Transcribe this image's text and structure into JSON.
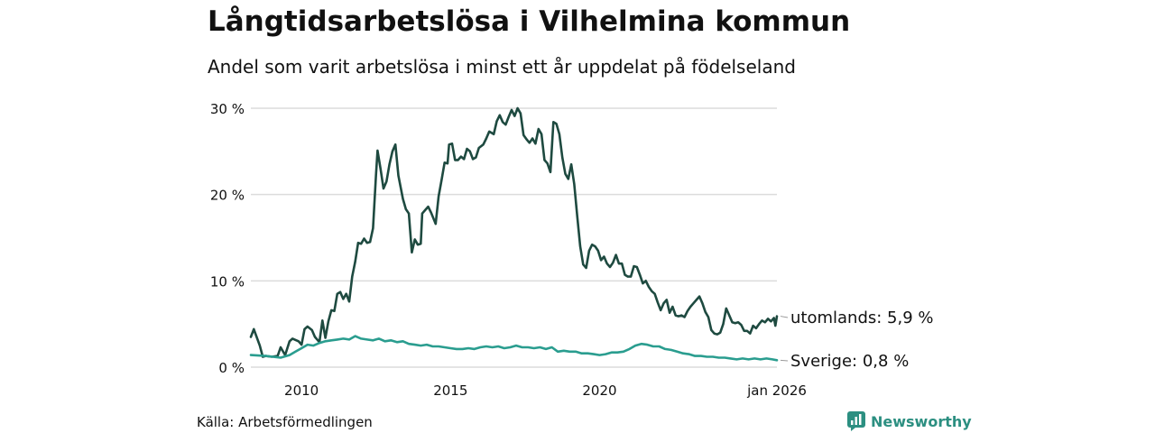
{
  "title": "Långtidsarbetslösa i Vilhelmina kommun",
  "subtitle": "Andel som varit arbetslösa i minst ett år uppdelat på födelseland",
  "source": "Källa: Arbetsförmedlingen",
  "brand": {
    "name": "Newsworthy",
    "icon": "newsworthy-logo-icon",
    "color": "#2c8f81"
  },
  "chart_data": {
    "type": "line",
    "title": "Långtidsarbetslösa i Vilhelmina kommun",
    "xlabel": "",
    "ylabel": "",
    "xlim": [
      2008.3,
      2026.0
    ],
    "ylim": [
      0,
      30
    ],
    "grid": true,
    "y_ticks": [
      {
        "value": 0,
        "label": "0 %"
      },
      {
        "value": 10,
        "label": "10 %"
      },
      {
        "value": 20,
        "label": "20 %"
      },
      {
        "value": 30,
        "label": "30 %"
      }
    ],
    "x_ticks": [
      {
        "value": 2010,
        "label": "2010"
      },
      {
        "value": 2015,
        "label": "2015"
      },
      {
        "value": 2020,
        "label": "2020"
      },
      {
        "value": 2026.0,
        "label": "jan 2026"
      }
    ],
    "series": [
      {
        "name": "utomlands",
        "end_label": "utomlands: 5,9 %",
        "color": "#1e4a40",
        "points": [
          [
            2008.3,
            3.5
          ],
          [
            2008.4,
            4.4
          ],
          [
            2008.6,
            2.5
          ],
          [
            2008.7,
            1.2
          ],
          [
            2008.8,
            1.3
          ],
          [
            2009.0,
            1.2
          ],
          [
            2009.2,
            1.3
          ],
          [
            2009.3,
            2.3
          ],
          [
            2009.45,
            1.4
          ],
          [
            2009.6,
            3.0
          ],
          [
            2009.7,
            3.3
          ],
          [
            2009.9,
            3.0
          ],
          [
            2010.0,
            2.6
          ],
          [
            2010.1,
            4.4
          ],
          [
            2010.2,
            4.7
          ],
          [
            2010.35,
            4.3
          ],
          [
            2010.45,
            3.5
          ],
          [
            2010.6,
            2.9
          ],
          [
            2010.7,
            5.4
          ],
          [
            2010.8,
            3.4
          ],
          [
            2010.9,
            5.3
          ],
          [
            2011.0,
            6.6
          ],
          [
            2011.1,
            6.5
          ],
          [
            2011.2,
            8.5
          ],
          [
            2011.3,
            8.7
          ],
          [
            2011.4,
            7.9
          ],
          [
            2011.5,
            8.5
          ],
          [
            2011.6,
            7.6
          ],
          [
            2011.7,
            10.5
          ],
          [
            2011.8,
            12.2
          ],
          [
            2011.9,
            14.4
          ],
          [
            2012.0,
            14.3
          ],
          [
            2012.1,
            14.9
          ],
          [
            2012.2,
            14.4
          ],
          [
            2012.3,
            14.5
          ],
          [
            2012.4,
            16.1
          ],
          [
            2012.5,
            22.3
          ],
          [
            2012.55,
            25.1
          ],
          [
            2012.65,
            23.0
          ],
          [
            2012.75,
            20.7
          ],
          [
            2012.85,
            21.5
          ],
          [
            2012.95,
            23.5
          ],
          [
            2013.05,
            25.0
          ],
          [
            2013.15,
            25.8
          ],
          [
            2013.25,
            22.2
          ],
          [
            2013.4,
            19.5
          ],
          [
            2013.5,
            18.3
          ],
          [
            2013.6,
            17.8
          ],
          [
            2013.7,
            13.3
          ],
          [
            2013.8,
            14.8
          ],
          [
            2013.9,
            14.2
          ],
          [
            2014.0,
            14.3
          ],
          [
            2014.05,
            17.8
          ],
          [
            2014.15,
            18.2
          ],
          [
            2014.25,
            18.6
          ],
          [
            2014.35,
            17.9
          ],
          [
            2014.5,
            16.6
          ],
          [
            2014.6,
            19.8
          ],
          [
            2014.7,
            21.7
          ],
          [
            2014.8,
            23.7
          ],
          [
            2014.9,
            23.6
          ],
          [
            2014.95,
            25.8
          ],
          [
            2015.05,
            25.9
          ],
          [
            2015.15,
            24.0
          ],
          [
            2015.25,
            24.0
          ],
          [
            2015.35,
            24.4
          ],
          [
            2015.45,
            24.1
          ],
          [
            2015.55,
            25.3
          ],
          [
            2015.65,
            25.0
          ],
          [
            2015.75,
            24.1
          ],
          [
            2015.85,
            24.3
          ],
          [
            2015.95,
            25.4
          ],
          [
            2016.1,
            25.8
          ],
          [
            2016.2,
            26.5
          ],
          [
            2016.3,
            27.3
          ],
          [
            2016.45,
            27.0
          ],
          [
            2016.55,
            28.5
          ],
          [
            2016.65,
            29.2
          ],
          [
            2016.75,
            28.4
          ],
          [
            2016.85,
            28.1
          ],
          [
            2016.95,
            29.0
          ],
          [
            2017.05,
            29.8
          ],
          [
            2017.15,
            29.1
          ],
          [
            2017.25,
            30.0
          ],
          [
            2017.35,
            29.4
          ],
          [
            2017.45,
            26.9
          ],
          [
            2017.55,
            26.4
          ],
          [
            2017.65,
            26.0
          ],
          [
            2017.75,
            26.5
          ],
          [
            2017.85,
            25.9
          ],
          [
            2017.95,
            27.6
          ],
          [
            2018.05,
            27.0
          ],
          [
            2018.15,
            24.0
          ],
          [
            2018.25,
            23.6
          ],
          [
            2018.35,
            22.6
          ],
          [
            2018.45,
            28.4
          ],
          [
            2018.55,
            28.2
          ],
          [
            2018.65,
            27.0
          ],
          [
            2018.75,
            24.3
          ],
          [
            2018.85,
            22.4
          ],
          [
            2018.95,
            21.8
          ],
          [
            2019.05,
            23.5
          ],
          [
            2019.15,
            21.2
          ],
          [
            2019.25,
            17.5
          ],
          [
            2019.35,
            14.0
          ],
          [
            2019.45,
            11.9
          ],
          [
            2019.55,
            11.5
          ],
          [
            2019.65,
            13.5
          ],
          [
            2019.75,
            14.2
          ],
          [
            2019.85,
            14.0
          ],
          [
            2019.95,
            13.5
          ],
          [
            2020.05,
            12.4
          ],
          [
            2020.15,
            12.8
          ],
          [
            2020.25,
            12.0
          ],
          [
            2020.35,
            11.6
          ],
          [
            2020.45,
            12.1
          ],
          [
            2020.55,
            13.0
          ],
          [
            2020.65,
            12.0
          ],
          [
            2020.75,
            12.0
          ],
          [
            2020.85,
            10.7
          ],
          [
            2020.95,
            10.5
          ],
          [
            2021.05,
            10.5
          ],
          [
            2021.15,
            11.7
          ],
          [
            2021.25,
            11.6
          ],
          [
            2021.35,
            10.7
          ],
          [
            2021.45,
            9.7
          ],
          [
            2021.55,
            10.0
          ],
          [
            2021.65,
            9.3
          ],
          [
            2021.75,
            8.8
          ],
          [
            2021.85,
            8.5
          ],
          [
            2021.95,
            7.5
          ],
          [
            2022.05,
            6.6
          ],
          [
            2022.15,
            7.4
          ],
          [
            2022.25,
            7.8
          ],
          [
            2022.35,
            6.3
          ],
          [
            2022.45,
            7.0
          ],
          [
            2022.55,
            6.0
          ],
          [
            2022.65,
            5.9
          ],
          [
            2022.75,
            6.0
          ],
          [
            2022.85,
            5.8
          ],
          [
            2022.95,
            6.5
          ],
          [
            2023.05,
            7.0
          ],
          [
            2023.15,
            7.4
          ],
          [
            2023.25,
            7.8
          ],
          [
            2023.35,
            8.2
          ],
          [
            2023.45,
            7.4
          ],
          [
            2023.55,
            6.4
          ],
          [
            2023.65,
            5.8
          ],
          [
            2023.75,
            4.3
          ],
          [
            2023.85,
            3.9
          ],
          [
            2023.95,
            3.8
          ],
          [
            2024.05,
            4.0
          ],
          [
            2024.15,
            5.0
          ],
          [
            2024.25,
            6.8
          ],
          [
            2024.35,
            6.0
          ],
          [
            2024.45,
            5.2
          ],
          [
            2024.55,
            5.1
          ],
          [
            2024.65,
            5.2
          ],
          [
            2024.75,
            4.9
          ],
          [
            2024.85,
            4.2
          ],
          [
            2024.95,
            4.2
          ],
          [
            2025.05,
            3.9
          ],
          [
            2025.15,
            4.8
          ],
          [
            2025.25,
            4.5
          ],
          [
            2025.35,
            5.0
          ],
          [
            2025.45,
            5.4
          ],
          [
            2025.55,
            5.2
          ],
          [
            2025.65,
            5.6
          ],
          [
            2025.75,
            5.3
          ],
          [
            2025.85,
            5.7
          ],
          [
            2025.9,
            4.8
          ],
          [
            2025.95,
            5.9
          ]
        ]
      },
      {
        "name": "Sverige",
        "end_label": "Sverige: 0,8 %",
        "color": "#2a9d8f",
        "points": [
          [
            2008.3,
            1.4
          ],
          [
            2008.8,
            1.3
          ],
          [
            2009.3,
            1.1
          ],
          [
            2009.6,
            1.4
          ],
          [
            2009.8,
            1.8
          ],
          [
            2010.0,
            2.2
          ],
          [
            2010.2,
            2.6
          ],
          [
            2010.4,
            2.5
          ],
          [
            2010.6,
            2.8
          ],
          [
            2010.8,
            3.0
          ],
          [
            2011.0,
            3.1
          ],
          [
            2011.2,
            3.2
          ],
          [
            2011.4,
            3.3
          ],
          [
            2011.6,
            3.2
          ],
          [
            2011.8,
            3.6
          ],
          [
            2012.0,
            3.3
          ],
          [
            2012.2,
            3.2
          ],
          [
            2012.4,
            3.1
          ],
          [
            2012.6,
            3.3
          ],
          [
            2012.8,
            3.0
          ],
          [
            2013.0,
            3.1
          ],
          [
            2013.2,
            2.9
          ],
          [
            2013.4,
            3.0
          ],
          [
            2013.6,
            2.7
          ],
          [
            2013.8,
            2.6
          ],
          [
            2014.0,
            2.5
          ],
          [
            2014.2,
            2.6
          ],
          [
            2014.4,
            2.4
          ],
          [
            2014.6,
            2.4
          ],
          [
            2014.8,
            2.3
          ],
          [
            2015.0,
            2.2
          ],
          [
            2015.2,
            2.1
          ],
          [
            2015.4,
            2.1
          ],
          [
            2015.6,
            2.2
          ],
          [
            2015.8,
            2.1
          ],
          [
            2016.0,
            2.3
          ],
          [
            2016.2,
            2.4
          ],
          [
            2016.4,
            2.3
          ],
          [
            2016.6,
            2.4
          ],
          [
            2016.8,
            2.2
          ],
          [
            2017.0,
            2.3
          ],
          [
            2017.2,
            2.5
          ],
          [
            2017.4,
            2.3
          ],
          [
            2017.6,
            2.3
          ],
          [
            2017.8,
            2.2
          ],
          [
            2018.0,
            2.3
          ],
          [
            2018.2,
            2.1
          ],
          [
            2018.4,
            2.3
          ],
          [
            2018.6,
            1.8
          ],
          [
            2018.8,
            1.9
          ],
          [
            2019.0,
            1.8
          ],
          [
            2019.2,
            1.8
          ],
          [
            2019.4,
            1.6
          ],
          [
            2019.6,
            1.6
          ],
          [
            2019.8,
            1.5
          ],
          [
            2020.0,
            1.4
          ],
          [
            2020.2,
            1.5
          ],
          [
            2020.4,
            1.7
          ],
          [
            2020.6,
            1.7
          ],
          [
            2020.8,
            1.8
          ],
          [
            2021.0,
            2.1
          ],
          [
            2021.2,
            2.5
          ],
          [
            2021.4,
            2.7
          ],
          [
            2021.6,
            2.6
          ],
          [
            2021.8,
            2.4
          ],
          [
            2022.0,
            2.4
          ],
          [
            2022.2,
            2.1
          ],
          [
            2022.4,
            2.0
          ],
          [
            2022.6,
            1.8
          ],
          [
            2022.8,
            1.6
          ],
          [
            2023.0,
            1.5
          ],
          [
            2023.2,
            1.3
          ],
          [
            2023.4,
            1.3
          ],
          [
            2023.6,
            1.2
          ],
          [
            2023.8,
            1.2
          ],
          [
            2024.0,
            1.1
          ],
          [
            2024.2,
            1.1
          ],
          [
            2024.4,
            1.0
          ],
          [
            2024.6,
            0.9
          ],
          [
            2024.8,
            1.0
          ],
          [
            2025.0,
            0.9
          ],
          [
            2025.2,
            1.0
          ],
          [
            2025.4,
            0.9
          ],
          [
            2025.6,
            1.0
          ],
          [
            2025.8,
            0.9
          ],
          [
            2025.95,
            0.8
          ]
        ]
      }
    ]
  }
}
